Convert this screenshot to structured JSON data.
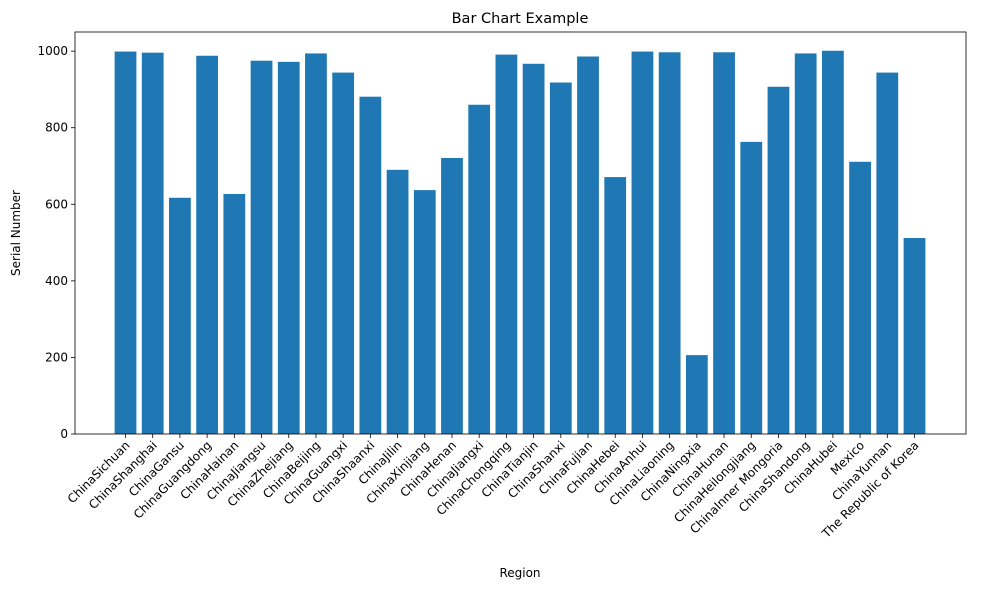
{
  "chart_data": {
    "type": "bar",
    "title": "Bar Chart Example",
    "xlabel": "Region",
    "ylabel": "Serial Number",
    "ylim": [
      0,
      1050
    ],
    "yticks": [
      0,
      200,
      400,
      600,
      800,
      1000
    ],
    "grid": false,
    "bar_color": "#1f77b4",
    "categories": [
      "ChinaSichuan",
      "ChinaShanghai",
      "ChinaGansu",
      "ChinaGuangdong",
      "ChinaHainan",
      "ChinaJiangsu",
      "ChinaZhejiang",
      "ChinaBeijing",
      "ChinaGuangxi",
      "ChinaShaanxi",
      "ChinaJilin",
      "ChinaXinjiang",
      "ChinaHenan",
      "ChinaJiangxi",
      "ChinaChongqing",
      "ChinaTianjin",
      "ChinaShanxi",
      "ChinaFujian",
      "ChinaHebei",
      "ChinaAnhui",
      "ChinaLiaoning",
      "ChinaNingxia",
      "ChinaHunan",
      "ChinaHeilongjiang",
      "ChinaInner Mongoria",
      "ChinaShandong",
      "ChinaHubei",
      "Mexico",
      "ChinaYunnan",
      "The Republic of Korea"
    ],
    "values": [
      999,
      996,
      617,
      988,
      627,
      975,
      972,
      994,
      944,
      881,
      690,
      637,
      721,
      860,
      991,
      967,
      918,
      986,
      671,
      999,
      997,
      206,
      997,
      763,
      907,
      994,
      1001,
      711,
      944,
      512
    ]
  }
}
